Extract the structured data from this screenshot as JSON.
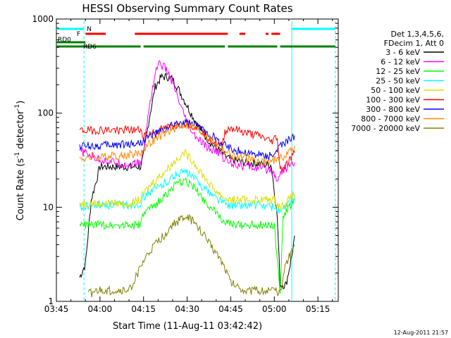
{
  "chart_data": {
    "type": "line",
    "title": "HESSI Observing Summary Count Rates",
    "xlabel": "Start Time (11-Aug-11 03:42:42)",
    "ylabel_main": "Count Rate (s",
    "ylabel_sup1": "-1",
    "ylabel_mid": " detector",
    "ylabel_sup2": "-1",
    "ylabel_end": ")",
    "yscale": "log",
    "ylim": [
      1,
      1000
    ],
    "xlim_minutes": [
      225,
      322
    ],
    "x_ticks": [
      {
        "minute": 225,
        "label": "03:45"
      },
      {
        "minute": 240,
        "label": "04:00"
      },
      {
        "minute": 255,
        "label": "04:15"
      },
      {
        "minute": 270,
        "label": "04:30"
      },
      {
        "minute": 285,
        "label": "04:45"
      },
      {
        "minute": 300,
        "label": "05:00"
      },
      {
        "minute": 315,
        "label": "05:15"
      }
    ],
    "y_ticks": [
      {
        "value": 1,
        "label": "1"
      },
      {
        "value": 10,
        "label": "10"
      },
      {
        "value": 100,
        "label": "100"
      },
      {
        "value": 1000,
        "label": "1000"
      }
    ],
    "legend_header": [
      "Det 1,3,4,5,6,",
      "FDecim 1, Att 0"
    ],
    "series": [
      {
        "name": "3 - 6 keV",
        "color": "#000000",
        "points": [
          [
            233,
            1.8
          ],
          [
            235,
            2.5
          ],
          [
            237,
            12
          ],
          [
            240,
            27
          ],
          [
            245,
            27
          ],
          [
            250,
            27
          ],
          [
            254,
            27
          ],
          [
            255,
            35
          ],
          [
            257,
            90
          ],
          [
            259,
            190
          ],
          [
            261,
            240
          ],
          [
            263,
            245
          ],
          [
            265,
            230
          ],
          [
            267,
            180
          ],
          [
            270,
            120
          ],
          [
            273,
            80
          ],
          [
            276,
            58
          ],
          [
            279,
            45
          ],
          [
            282,
            38
          ],
          [
            283,
            35
          ],
          [
            285,
            32
          ],
          [
            290,
            30
          ],
          [
            295,
            29
          ],
          [
            299,
            28
          ],
          [
            301,
            8
          ],
          [
            302,
            1.5
          ],
          [
            304,
            1.5
          ],
          [
            306,
            3
          ],
          [
            307,
            5
          ]
        ]
      },
      {
        "name": "6 - 12 keV",
        "color": "#ff00ff",
        "points": [
          [
            233,
            40
          ],
          [
            240,
            32
          ],
          [
            245,
            30
          ],
          [
            250,
            28
          ],
          [
            254,
            30
          ],
          [
            255,
            40
          ],
          [
            257,
            120
          ],
          [
            259,
            260
          ],
          [
            260,
            340
          ],
          [
            262,
            310
          ],
          [
            264,
            250
          ],
          [
            266,
            170
          ],
          [
            268,
            110
          ],
          [
            270,
            80
          ],
          [
            272,
            60
          ],
          [
            274,
            52
          ],
          [
            276,
            45
          ],
          [
            279,
            40
          ],
          [
            281,
            38
          ],
          [
            283,
            32
          ],
          [
            285,
            30
          ],
          [
            290,
            27
          ],
          [
            295,
            26
          ],
          [
            299,
            25
          ],
          [
            301,
            20
          ],
          [
            303,
            25
          ],
          [
            307,
            30
          ]
        ]
      },
      {
        "name": "12 - 25 keV",
        "color": "#00ff00",
        "points": [
          [
            233,
            6.5
          ],
          [
            240,
            6.5
          ],
          [
            245,
            6.5
          ],
          [
            250,
            6.5
          ],
          [
            254,
            6.5
          ],
          [
            255,
            8.5
          ],
          [
            258,
            10
          ],
          [
            261,
            12
          ],
          [
            264,
            15
          ],
          [
            267,
            18
          ],
          [
            269,
            19
          ],
          [
            272,
            17
          ],
          [
            275,
            13
          ],
          [
            278,
            10
          ],
          [
            281,
            8
          ],
          [
            283,
            7
          ],
          [
            285,
            6.5
          ],
          [
            290,
            6.5
          ],
          [
            295,
            6.5
          ],
          [
            300,
            6.5
          ],
          [
            302,
            1.2
          ],
          [
            303,
            8
          ],
          [
            307,
            12
          ]
        ]
      },
      {
        "name": "25 - 50 keV",
        "color": "#00ffff",
        "points": [
          [
            233,
            10
          ],
          [
            240,
            10.5
          ],
          [
            245,
            10.5
          ],
          [
            250,
            10.5
          ],
          [
            254,
            11
          ],
          [
            255,
            13
          ],
          [
            258,
            15
          ],
          [
            261,
            17
          ],
          [
            264,
            20
          ],
          [
            267,
            23
          ],
          [
            269,
            24
          ],
          [
            272,
            21
          ],
          [
            275,
            17
          ],
          [
            278,
            14
          ],
          [
            281,
            12
          ],
          [
            283,
            11
          ],
          [
            285,
            10.5
          ],
          [
            290,
            10.5
          ],
          [
            295,
            10.5
          ],
          [
            300,
            10
          ],
          [
            302,
            9
          ],
          [
            304,
            10
          ],
          [
            307,
            13
          ]
        ]
      },
      {
        "name": "50 - 100 keV",
        "color": "#dddd00",
        "points": [
          [
            233,
            11
          ],
          [
            240,
            11
          ],
          [
            245,
            11
          ],
          [
            250,
            11
          ],
          [
            254,
            12
          ],
          [
            255,
            14
          ],
          [
            258,
            18
          ],
          [
            261,
            22
          ],
          [
            264,
            27
          ],
          [
            267,
            34
          ],
          [
            269,
            38
          ],
          [
            272,
            31
          ],
          [
            275,
            23
          ],
          [
            278,
            17
          ],
          [
            281,
            14
          ],
          [
            283,
            12.5
          ],
          [
            285,
            12
          ],
          [
            290,
            12
          ],
          [
            295,
            12
          ],
          [
            300,
            12
          ],
          [
            302,
            10
          ],
          [
            304,
            11
          ],
          [
            307,
            14
          ]
        ]
      },
      {
        "name": "100 - 300 keV",
        "color": "#ff0000",
        "points": [
          [
            233,
            65
          ],
          [
            240,
            66
          ],
          [
            245,
            66
          ],
          [
            250,
            66
          ],
          [
            254,
            66
          ],
          [
            255,
            58
          ],
          [
            258,
            62
          ],
          [
            262,
            68
          ],
          [
            266,
            75
          ],
          [
            269,
            78
          ],
          [
            272,
            74
          ],
          [
            276,
            62
          ],
          [
            279,
            50
          ],
          [
            282,
            44
          ],
          [
            283,
            64
          ],
          [
            285,
            70
          ],
          [
            290,
            62
          ],
          [
            295,
            57
          ],
          [
            299,
            50
          ],
          [
            301,
            57
          ],
          [
            302,
            25
          ],
          [
            304,
            28
          ],
          [
            307,
            38
          ]
        ]
      },
      {
        "name": "300 - 800 keV",
        "color": "#0000ff",
        "points": [
          [
            233,
            45
          ],
          [
            240,
            45
          ],
          [
            245,
            46
          ],
          [
            250,
            47
          ],
          [
            254,
            48
          ],
          [
            255,
            52
          ],
          [
            258,
            58
          ],
          [
            262,
            66
          ],
          [
            266,
            76
          ],
          [
            269,
            80
          ],
          [
            272,
            76
          ],
          [
            276,
            66
          ],
          [
            279,
            56
          ],
          [
            282,
            48
          ],
          [
            285,
            42
          ],
          [
            290,
            38
          ],
          [
            295,
            36
          ],
          [
            299,
            35
          ],
          [
            301,
            40
          ],
          [
            302,
            45
          ],
          [
            304,
            48
          ],
          [
            307,
            58
          ]
        ]
      },
      {
        "name": "800 - 7000 keV",
        "color": "#ff8800",
        "points": [
          [
            233,
            33
          ],
          [
            240,
            34
          ],
          [
            245,
            35
          ],
          [
            250,
            36
          ],
          [
            254,
            38
          ],
          [
            255,
            42
          ],
          [
            258,
            50
          ],
          [
            262,
            60
          ],
          [
            266,
            70
          ],
          [
            269,
            76
          ],
          [
            272,
            72
          ],
          [
            276,
            60
          ],
          [
            279,
            50
          ],
          [
            282,
            42
          ],
          [
            285,
            36
          ],
          [
            290,
            33
          ],
          [
            295,
            31
          ],
          [
            299,
            30
          ],
          [
            301,
            34
          ],
          [
            302,
            33
          ],
          [
            304,
            36
          ],
          [
            307,
            45
          ]
        ]
      },
      {
        "name": "7000 - 20000 keV",
        "color": "#808000",
        "points": [
          [
            236,
            1.2
          ],
          [
            240,
            1.3
          ],
          [
            245,
            1.3
          ],
          [
            250,
            1.3
          ],
          [
            253,
            2
          ],
          [
            256,
            3
          ],
          [
            259,
            4
          ],
          [
            262,
            5
          ],
          [
            265,
            6.5
          ],
          [
            268,
            7.5
          ],
          [
            270,
            8
          ],
          [
            272,
            7
          ],
          [
            275,
            5.5
          ],
          [
            278,
            4
          ],
          [
            281,
            3
          ],
          [
            283,
            2.3
          ],
          [
            285,
            1.6
          ],
          [
            290,
            1.3
          ],
          [
            295,
            1.3
          ],
          [
            300,
            1.3
          ],
          [
            302,
            1.2
          ],
          [
            304,
            2.5
          ],
          [
            306,
            3.5
          ],
          [
            307,
            4
          ]
        ]
      }
    ],
    "status_bars": {
      "saa_label": "N",
      "flare_label": "F",
      "rd0_label": "RD0",
      "rd6_label": "RD6",
      "saa_segments": [
        [
          225,
          234.5
        ],
        [
          306,
          321
        ]
      ],
      "flare_segments": [
        [
          235,
          242
        ],
        [
          252,
          284
        ],
        [
          288,
          290
        ],
        [
          297,
          298
        ],
        [
          299,
          302
        ]
      ],
      "rd0_segments": [
        [
          225,
          235
        ]
      ],
      "rd6_segments": [
        [
          225,
          254
        ],
        [
          255,
          283
        ],
        [
          284,
          301
        ],
        [
          302,
          321
        ]
      ]
    },
    "vlines_minutes": [
      234.5,
      306,
      321
    ]
  },
  "timestamp": "12-Aug-2011 21:57"
}
